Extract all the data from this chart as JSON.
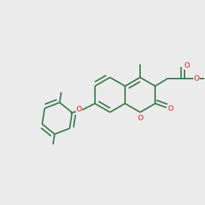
{
  "bg": "#ebebeb",
  "bc": "#3a7a4a",
  "hc": "#ee1111",
  "lw": 1.5,
  "figsize": [
    3.0,
    3.0
  ],
  "dpi": 100,
  "xlim": [
    0,
    10
  ],
  "ylim": [
    0,
    10
  ]
}
